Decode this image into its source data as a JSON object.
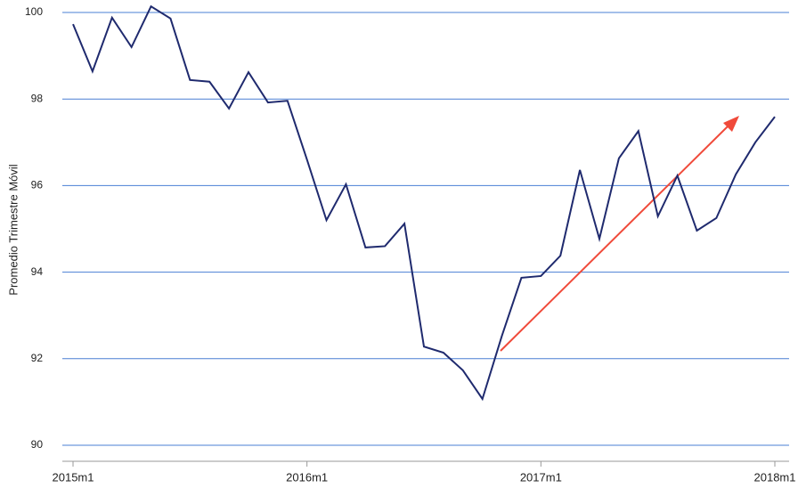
{
  "chart_data": {
    "type": "line",
    "y_label": "Promedio Trimestre Móvil",
    "categories": [
      "2015m1",
      null,
      null,
      null,
      null,
      null,
      null,
      null,
      null,
      null,
      null,
      null,
      "2016m1",
      null,
      null,
      null,
      null,
      null,
      null,
      null,
      null,
      null,
      null,
      null,
      "2017m1",
      null,
      null,
      null,
      null,
      null,
      null,
      null,
      null,
      null,
      null,
      null,
      "2018m1"
    ],
    "series": [
      {
        "name": "Promedio Trimestre Móvil",
        "color": "#1f2a6e",
        "values": [
          99.73,
          98.64,
          99.88,
          99.2,
          100.14,
          99.86,
          98.44,
          98.4,
          97.78,
          98.62,
          97.92,
          97.96,
          96.6,
          95.2,
          96.03,
          94.57,
          94.6,
          95.12,
          92.28,
          92.14,
          91.73,
          91.07,
          92.53,
          93.87,
          93.91,
          94.38,
          96.36,
          94.77,
          96.63,
          97.26,
          95.29,
          96.23,
          94.96,
          95.25,
          96.26,
          97.0,
          97.59
        ]
      }
    ],
    "ylim": [
      90,
      100
    ],
    "yticks": [
      90,
      92,
      94,
      96,
      98,
      100
    ],
    "grid": true,
    "grid_color": "#4a7fd4"
  }
}
